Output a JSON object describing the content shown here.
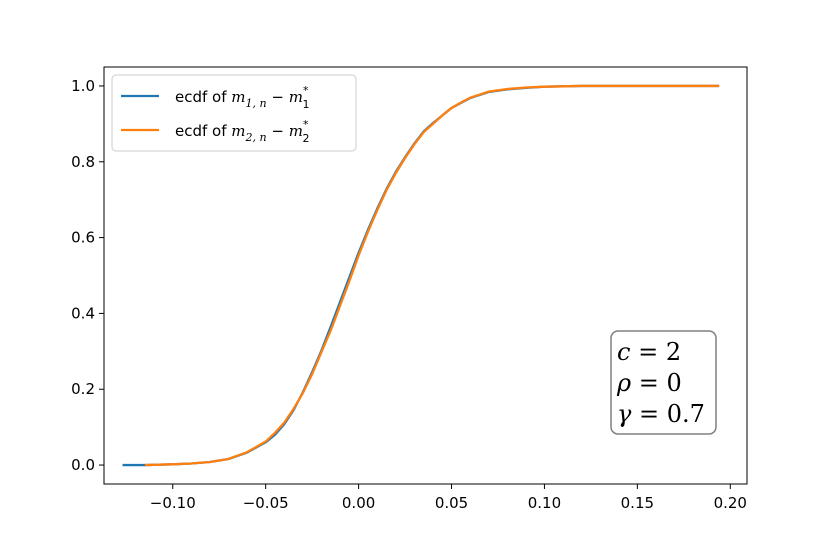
{
  "chart_data": {
    "type": "line",
    "title": "",
    "xlabel": "",
    "ylabel": "",
    "xlim": [
      -0.137,
      0.209
    ],
    "ylim": [
      -0.05,
      1.05
    ],
    "xticks": [
      -0.1,
      -0.05,
      0.0,
      0.05,
      0.1,
      0.15,
      0.2
    ],
    "xtick_labels": [
      "−0.10",
      "−0.05",
      "0.00",
      "0.05",
      "0.10",
      "0.15",
      "0.20"
    ],
    "yticks": [
      0.0,
      0.2,
      0.4,
      0.6,
      0.8,
      1.0
    ],
    "ytick_labels": [
      "0.0",
      "0.2",
      "0.4",
      "0.6",
      "0.8",
      "1.0"
    ],
    "grid": false,
    "legend_position": "top-left",
    "series": [
      {
        "name": "ecdf of m_{1,n} − m_1^*",
        "legend": {
          "prefix": "ecdf of ",
          "var": "m",
          "sub": "1, n",
          "minus": " − ",
          "var2": "m",
          "sup": "*",
          "sub2": "1"
        },
        "color": "#1f77b4",
        "x": [
          -0.127,
          -0.115,
          -0.1,
          -0.09,
          -0.08,
          -0.07,
          -0.06,
          -0.05,
          -0.045,
          -0.04,
          -0.035,
          -0.03,
          -0.025,
          -0.02,
          -0.015,
          -0.01,
          -0.005,
          0.0,
          0.005,
          0.01,
          0.015,
          0.02,
          0.025,
          0.03,
          0.035,
          0.04,
          0.045,
          0.05,
          0.055,
          0.06,
          0.065,
          0.07,
          0.08,
          0.09,
          0.1,
          0.11,
          0.12,
          0.14,
          0.16,
          0.18,
          0.194
        ],
        "y": [
          0.0,
          0.0,
          0.002,
          0.004,
          0.008,
          0.016,
          0.033,
          0.06,
          0.08,
          0.108,
          0.145,
          0.192,
          0.245,
          0.302,
          0.365,
          0.43,
          0.495,
          0.56,
          0.62,
          0.676,
          0.728,
          0.773,
          0.812,
          0.848,
          0.88,
          0.902,
          0.922,
          0.942,
          0.955,
          0.968,
          0.976,
          0.984,
          0.991,
          0.995,
          0.998,
          0.999,
          1.0,
          1.0,
          1.0,
          1.0,
          1.0
        ]
      },
      {
        "name": "ecdf of m_{2,n} − m_2^*",
        "legend": {
          "prefix": "ecdf of ",
          "var": "m",
          "sub": "2, n",
          "minus": " − ",
          "var2": "m",
          "sup": "*",
          "sub2": "2"
        },
        "color": "#ff7f0e",
        "x": [
          -0.115,
          -0.1,
          -0.09,
          -0.08,
          -0.07,
          -0.06,
          -0.05,
          -0.045,
          -0.04,
          -0.035,
          -0.03,
          -0.025,
          -0.02,
          -0.015,
          -0.01,
          -0.005,
          0.0,
          0.005,
          0.01,
          0.015,
          0.02,
          0.025,
          0.03,
          0.035,
          0.04,
          0.045,
          0.05,
          0.055,
          0.06,
          0.065,
          0.07,
          0.08,
          0.09,
          0.1,
          0.11,
          0.12,
          0.14,
          0.16,
          0.18,
          0.194
        ],
        "y": [
          0.0,
          0.002,
          0.004,
          0.008,
          0.016,
          0.034,
          0.062,
          0.085,
          0.112,
          0.148,
          0.19,
          0.24,
          0.298,
          0.355,
          0.42,
          0.485,
          0.553,
          0.615,
          0.672,
          0.725,
          0.77,
          0.81,
          0.846,
          0.878,
          0.9,
          0.922,
          0.942,
          0.956,
          0.969,
          0.977,
          0.985,
          0.992,
          0.996,
          0.998,
          0.999,
          1.0,
          1.0,
          1.0,
          1.0,
          1.0
        ]
      }
    ],
    "annotation": {
      "position": "bottom-right",
      "lines": [
        {
          "var": "c",
          "eq": " = ",
          "val": "2"
        },
        {
          "var": "ρ",
          "eq": " = ",
          "val": "0"
        },
        {
          "var": "γ",
          "eq": " = ",
          "val": "0.7"
        }
      ]
    }
  }
}
